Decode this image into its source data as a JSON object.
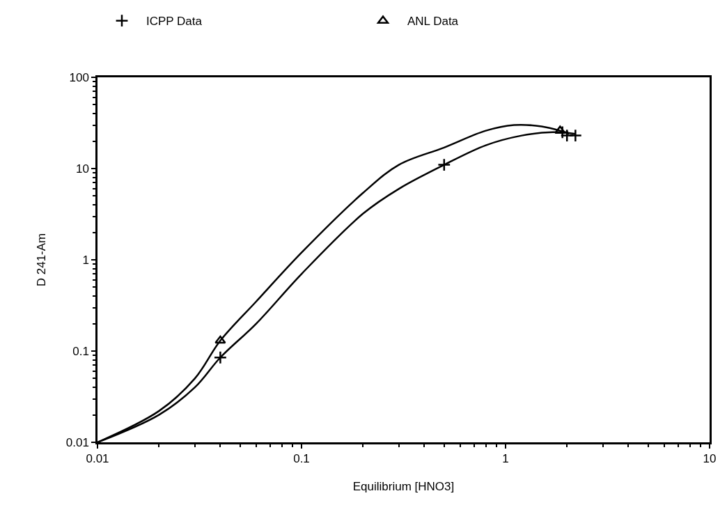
{
  "chart_data": {
    "type": "scatter",
    "xlabel": "Equilibrium [HNO3]",
    "ylabel": "D 241-Am",
    "log": "xy",
    "xlim": [
      0.01,
      10
    ],
    "ylim": [
      0.01,
      100
    ],
    "xticks": [
      0.01,
      0.1,
      1,
      10
    ],
    "yticks": [
      0.01,
      0.1,
      1,
      10,
      100
    ],
    "legend": "top",
    "series": [
      {
        "name": "ICPP Data",
        "marker": "cross",
        "color": "#000000",
        "x": [
          0.04,
          0.5,
          1.9,
          2.0,
          2.2
        ],
        "values": [
          0.085,
          11,
          25,
          23,
          23
        ]
      },
      {
        "name": "ANL Data",
        "marker": "triangle",
        "color": "#000000",
        "x": [
          0.04,
          1.85
        ],
        "values": [
          0.13,
          26
        ]
      },
      {
        "type": "line",
        "color": "#000000",
        "x": [
          0.01,
          0.02,
          0.03,
          0.04,
          0.06,
          0.1,
          0.2,
          0.3,
          0.5,
          0.8,
          1.1,
          1.5,
          1.85,
          2.05
        ],
        "values": [
          0.01,
          0.022,
          0.05,
          0.13,
          0.35,
          1.2,
          5.4,
          11,
          17,
          26,
          30,
          29,
          26,
          24
        ]
      },
      {
        "type": "line",
        "color": "#000000",
        "x": [
          0.01,
          0.02,
          0.03,
          0.04,
          0.06,
          0.1,
          0.2,
          0.3,
          0.5,
          0.8,
          1.2,
          1.7,
          2.2
        ],
        "values": [
          0.01,
          0.02,
          0.04,
          0.085,
          0.2,
          0.7,
          3.2,
          6,
          11,
          18,
          23,
          25,
          24
        ]
      }
    ]
  }
}
